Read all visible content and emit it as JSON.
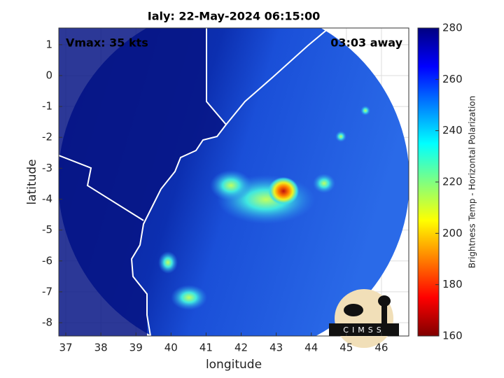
{
  "chart_data": {
    "type": "image",
    "title": "Ialy: 22-May-2024 06:15:00",
    "annotations": [
      "Vmax: 35 kts",
      "03:03 away"
    ],
    "x_label": "longitude",
    "y_label": "latitude",
    "xlim": [
      36.8,
      46.78
    ],
    "ylim": [
      -8.43,
      1.54
    ],
    "xticks": [
      37,
      38,
      39,
      40,
      41,
      42,
      43,
      44,
      45,
      46
    ],
    "yticks": [
      1,
      0,
      -1,
      -2,
      -3,
      -4,
      -5,
      -6,
      -7,
      -8
    ],
    "grid": true,
    "colorbar": {
      "label": "Brightness Temp - Horizontal Polarization",
      "lim": [
        160,
        280
      ],
      "ticks": [
        160,
        180,
        200,
        220,
        240,
        260,
        280
      ],
      "colormap": "jet"
    }
  },
  "logo": {
    "text": "CIMSS"
  }
}
